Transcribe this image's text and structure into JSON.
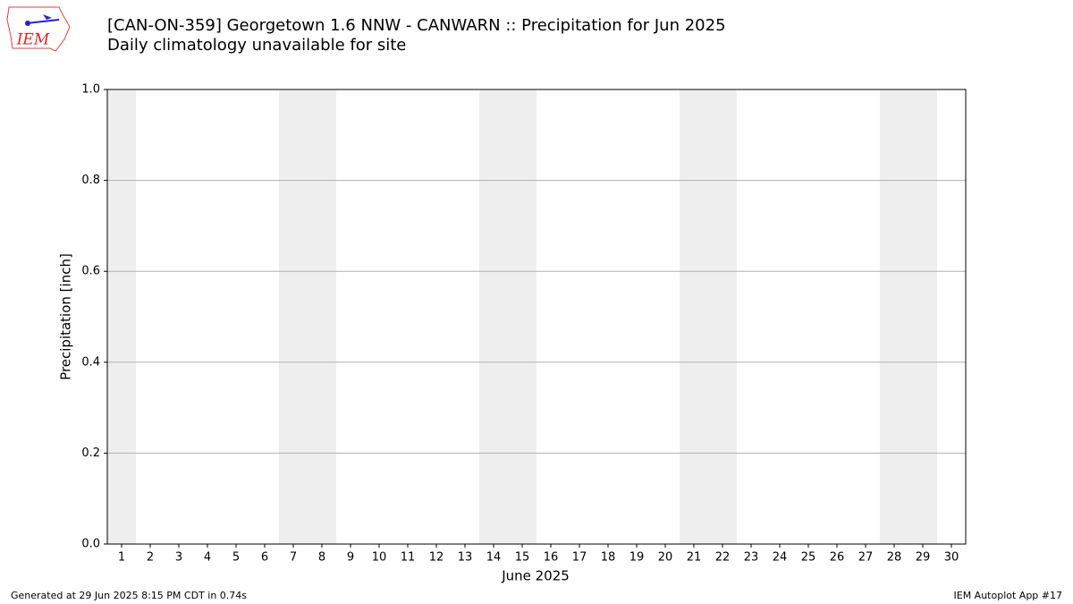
{
  "chart_data": {
    "type": "bar",
    "title": "[CAN-ON-359] Georgetown 1.6 NNW - CANWARN :: Precipitation for Jun 2025",
    "subtitle": "Daily climatology unavailable for site",
    "x_label": "June 2025",
    "y_label": "Precipitation [inch]",
    "xlim": [
      0.5,
      30.5
    ],
    "xticks": [
      1,
      2,
      3,
      4,
      5,
      6,
      7,
      8,
      9,
      10,
      11,
      12,
      13,
      14,
      15,
      16,
      17,
      18,
      19,
      20,
      21,
      22,
      23,
      24,
      25,
      26,
      27,
      28,
      29,
      30
    ],
    "ylim": [
      0,
      1
    ],
    "yticks": [
      {
        "value": 0,
        "label": "0.0"
      },
      {
        "value": 0.2,
        "label": "0.2"
      },
      {
        "value": 0.4,
        "label": "0.4"
      },
      {
        "value": 0.6,
        "label": "0.6"
      },
      {
        "value": 0.8,
        "label": "0.8"
      },
      {
        "value": 1,
        "label": "1.0"
      }
    ],
    "grid": true,
    "shade_spans": [
      [
        0.5,
        1.5
      ],
      [
        6.5,
        8.5
      ],
      [
        13.5,
        15.5
      ],
      [
        20.5,
        22.5
      ],
      [
        27.5,
        29.5
      ]
    ],
    "shade_color": "#eeeeee"
  },
  "logo_text": "IEM",
  "footer_left": "Generated at 29 Jun 2025 8:15 PM CDT in 0.74s",
  "footer_right": "IEM Autoplot App #17"
}
